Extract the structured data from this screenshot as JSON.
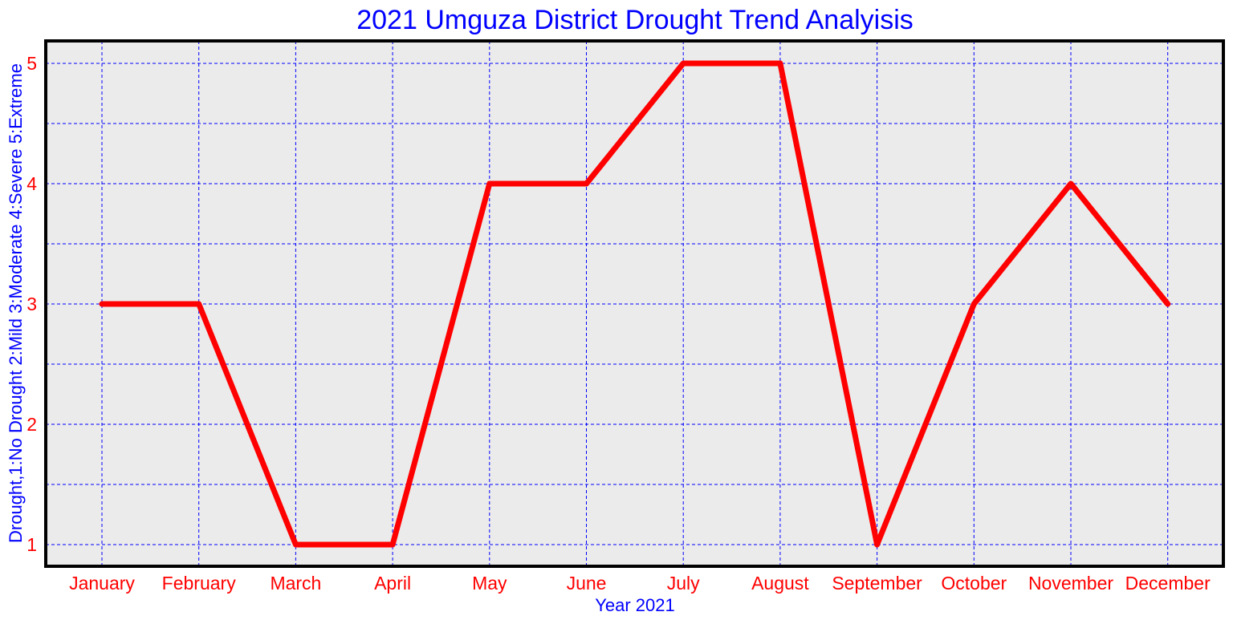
{
  "chart_data": {
    "type": "line",
    "title": "2021 Umguza District Drought Trend Analyisis",
    "xlabel": "Year 2021",
    "ylabel": "Drought,1:No Drought 2:Mild 3:Moderate 4:Severe 5:Extreme",
    "categories": [
      "January",
      "February",
      "March",
      "April",
      "May",
      "June",
      "July",
      "August",
      "September",
      "October",
      "November",
      "December"
    ],
    "series": [
      {
        "values": [
          3,
          3,
          1,
          1,
          4,
          4,
          5,
          5,
          1,
          3,
          4,
          3
        ]
      }
    ],
    "ylim": [
      0.8,
      5.2
    ],
    "yticks": [
      "1",
      "2",
      "3",
      "4",
      "5"
    ],
    "grid": true,
    "colors": {
      "line": "#ff0000",
      "grid": "#0000ff",
      "plot_background": "#ebebeb",
      "frame": "#000000",
      "title": "#0000ff",
      "axis_label": "#0000ff",
      "tick_label": "#ff0000"
    }
  }
}
